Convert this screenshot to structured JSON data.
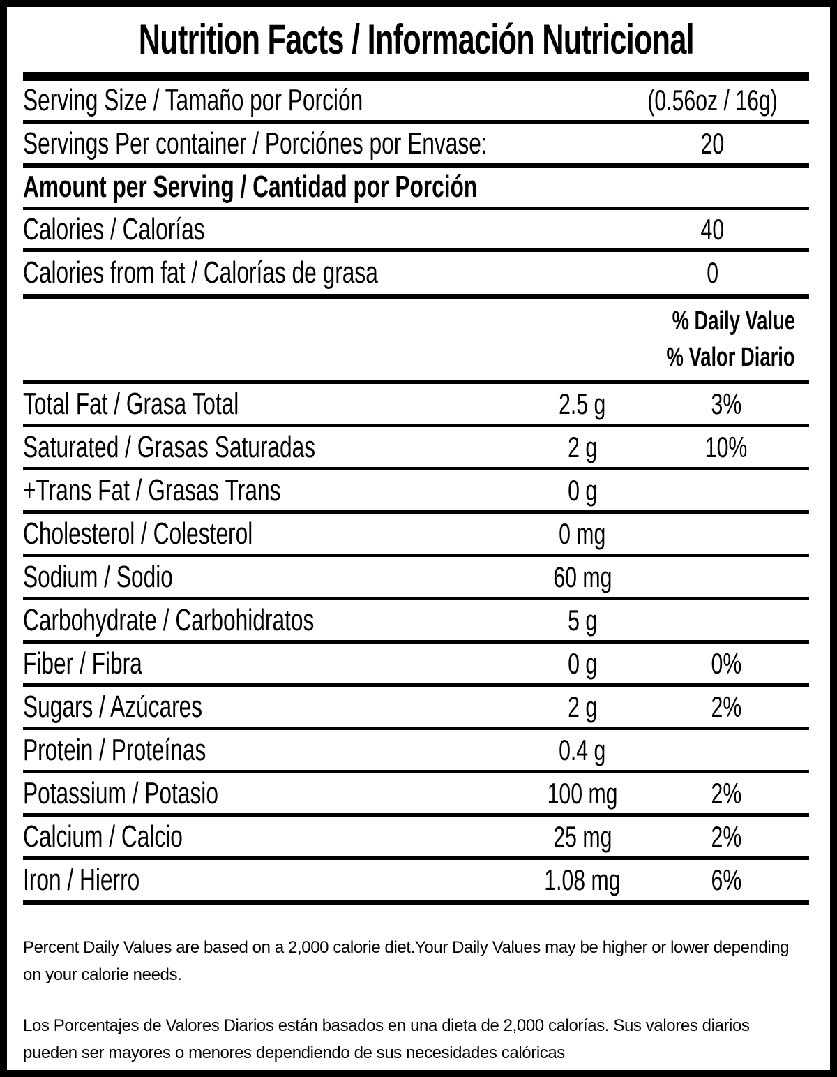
{
  "label": {
    "title": "Nutrition Facts / Información Nutricional",
    "serving_rows": [
      {
        "label": "Serving Size / Tamaño por Porción",
        "value": "(0.56oz / 16g)"
      },
      {
        "label": "Servings Per container / Porciónes por Envase:",
        "value": "20"
      }
    ],
    "amount_heading": "Amount per Serving / Cantidad por Porción",
    "calorie_rows": [
      {
        "label": "Calories / Calorías",
        "value": "40"
      },
      {
        "label": "Calories from fat / Calorías de grasa",
        "value": "0"
      }
    ],
    "daily_value_heading": {
      "line1": "% Daily Value",
      "line2": "% Valor Diario"
    },
    "nutrient_rows": [
      {
        "label": "Total Fat / Grasa Total",
        "amount": "2.5 g",
        "dv": "3%"
      },
      {
        "label": "Saturated / Grasas Saturadas",
        "amount": "2 g",
        "dv": "10%"
      },
      {
        "label": "+Trans Fat / Grasas Trans",
        "amount": "0 g",
        "dv": ""
      },
      {
        "label": "Cholesterol / Colesterol",
        "amount": "0 mg",
        "dv": ""
      },
      {
        "label": "Sodium / Sodio",
        "amount": "60 mg",
        "dv": ""
      },
      {
        "label": "Carbohydrate / Carbohidratos",
        "amount": "5 g",
        "dv": ""
      },
      {
        "label": "Fiber / Fibra",
        "amount": "0 g",
        "dv": "0%"
      },
      {
        "label": "Sugars / Azúcares",
        "amount": "2 g",
        "dv": "2%"
      },
      {
        "label": "Protein / Proteínas",
        "amount": "0.4 g",
        "dv": ""
      },
      {
        "label": "Potassium / Potasio",
        "amount": "100 mg",
        "dv": "2%"
      },
      {
        "label": "Calcium / Calcio",
        "amount": "25 mg",
        "dv": "2%"
      },
      {
        "label": "Iron / Hierro",
        "amount": "1.08 mg",
        "dv": "6%"
      }
    ],
    "footnotes": {
      "english": "Percent Daily Values are based on a 2,000 calorie diet.Your Daily Values may be higher or lower depending on your calorie needs.",
      "spanish": "Los Porcentajes de Valores Diarios están basados en una dieta de 2,000 calorías. Sus valores diarios pueden ser mayores o menores dependiendo de sus necesidades calóricas"
    }
  }
}
